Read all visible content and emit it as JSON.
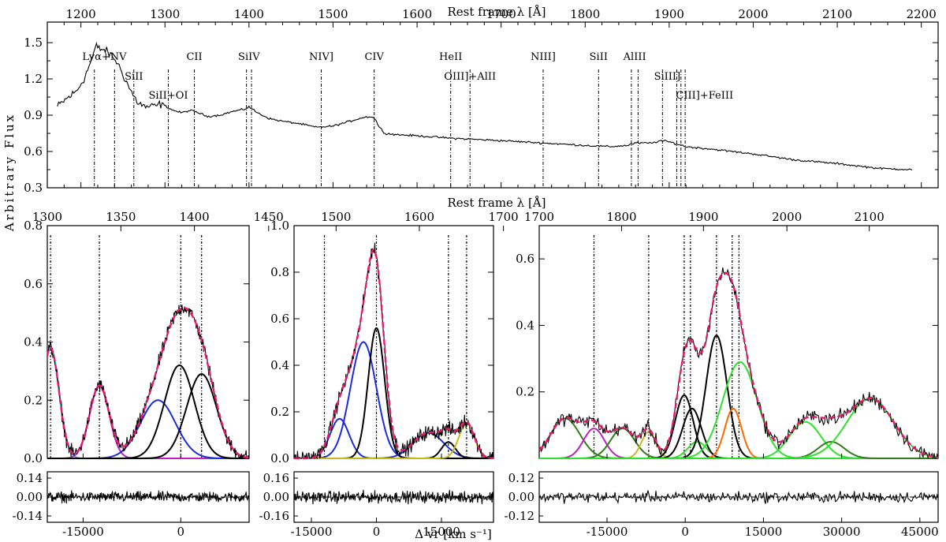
{
  "chart_data": [
    {
      "type": "line",
      "title": "",
      "xlabel": "Rest frame λ [Å]",
      "ylabel": "Arbitrary Flux",
      "xlim": [
        1160,
        2220
      ],
      "ylim": [
        0.3,
        1.67
      ],
      "xticks": [
        "1200",
        "1300",
        "1400",
        "1500",
        "1600",
        "1700",
        "1800",
        "1900",
        "2000",
        "2100",
        "2200"
      ],
      "yticks": [
        "0.3",
        "0.6",
        "0.9",
        "1.2",
        "1.5"
      ],
      "spectrum_knots": {
        "x": [
          1172,
          1180,
          1195,
          1205,
          1212,
          1218,
          1222,
          1228,
          1235,
          1242,
          1250,
          1258,
          1266,
          1275,
          1285,
          1295,
          1302,
          1310,
          1320,
          1330,
          1340,
          1350,
          1365,
          1380,
          1395,
          1400,
          1410,
          1425,
          1440,
          1460,
          1480,
          1500,
          1520,
          1535,
          1545,
          1550,
          1555,
          1562,
          1575,
          1600,
          1640,
          1700,
          1750,
          1800,
          1830,
          1850,
          1860,
          1880,
          1890,
          1900,
          1920,
          1950,
          2000,
          2050,
          2100,
          2150,
          2190
        ],
        "y": [
          0.97,
          1.02,
          1.1,
          1.22,
          1.35,
          1.47,
          1.45,
          1.44,
          1.4,
          1.35,
          1.24,
          1.12,
          1.02,
          0.97,
          0.97,
          0.99,
          0.97,
          0.94,
          0.92,
          0.94,
          0.92,
          0.89,
          0.9,
          0.93,
          0.95,
          0.97,
          0.92,
          0.87,
          0.85,
          0.83,
          0.8,
          0.81,
          0.85,
          0.88,
          0.89,
          0.87,
          0.8,
          0.75,
          0.74,
          0.73,
          0.71,
          0.69,
          0.67,
          0.65,
          0.64,
          0.65,
          0.67,
          0.67,
          0.69,
          0.68,
          0.64,
          0.62,
          0.58,
          0.53,
          0.5,
          0.46,
          0.45
        ]
      },
      "emission_lines": [
        {
          "label": "Lyα+NV",
          "x": [
            1216,
            1240
          ]
        },
        {
          "label": "SiII",
          "x": [
            1263
          ]
        },
        {
          "label": "SiII+OI",
          "x": [
            1304
          ]
        },
        {
          "label": "CII",
          "x": [
            1335
          ]
        },
        {
          "label": "SiIV",
          "x": [
            1397,
            1403
          ]
        },
        {
          "label": "NIV]",
          "x": [
            1486
          ]
        },
        {
          "label": "CIV",
          "x": [
            1549
          ]
        },
        {
          "label": "HeII",
          "x": [
            1640
          ]
        },
        {
          "label": "OIII]+AlII",
          "x": [
            1663
          ]
        },
        {
          "label": "NIII]",
          "x": [
            1750
          ]
        },
        {
          "label": "SiII",
          "x": [
            1816
          ]
        },
        {
          "label": "AlIII",
          "x": [
            1855,
            1863
          ]
        },
        {
          "label": "SiIII]",
          "x": [
            1892
          ]
        },
        {
          "label": "CIII]+FeIII",
          "x": [
            1909,
            1914,
            1919
          ]
        }
      ]
    },
    {
      "type": "line",
      "xlabel": "Δ vr [km s⁻¹]",
      "top_xlabel": "Rest frame λ [Å]",
      "ylim": [
        0,
        0.8
      ],
      "vlim": [
        -20500,
        10500
      ],
      "top_xticks": [
        "1300",
        "1350",
        "1400",
        "1450"
      ],
      "yticks": [
        "0.0",
        "0.2",
        "0.4",
        "0.6",
        "0.8"
      ],
      "xticks": [
        "-15000",
        "0"
      ],
      "residual_yticks": [
        "0.14",
        "0.00",
        "-0.14"
      ],
      "line_markers_v": [
        -20000,
        -12500,
        0,
        3200
      ],
      "components": [
        {
          "name": "cyan",
          "color": "#20b2c0",
          "amp": 0.38,
          "v0": -20000,
          "sigma": 1300
        },
        {
          "name": "magenta",
          "color": "#c020c0",
          "amp": 0.25,
          "v0": -12500,
          "sigma": 1500
        },
        {
          "name": "blue",
          "color": "#1a2be0",
          "amp": 0.2,
          "v0": -3500,
          "sigma": 2700
        },
        {
          "name": "black-1",
          "color": "#000000",
          "amp": 0.32,
          "v0": -200,
          "sigma": 2300
        },
        {
          "name": "black-2",
          "color": "#000000",
          "amp": 0.29,
          "v0": 3200,
          "sigma": 2300
        }
      ]
    },
    {
      "type": "line",
      "xlabel": "Δ vr [km s⁻¹]",
      "top_xlabel": "Rest frame λ [Å]",
      "ylim": [
        0,
        1.0
      ],
      "vlim": [
        -19000,
        27000
      ],
      "top_xticks": [
        "1500",
        "1600",
        "1700"
      ],
      "yticks": [
        "0.0",
        "0.2",
        "0.4",
        "0.6",
        "0.8",
        "1.0"
      ],
      "xticks": [
        "-15000",
        "0",
        "15000"
      ],
      "residual_yticks": [
        "0.16",
        "0.00",
        "-0.16"
      ],
      "line_markers_v": [
        -12000,
        0,
        16600,
        20800
      ],
      "components": [
        {
          "name": "blue-broad",
          "color": "#1a2be0",
          "amp": 0.5,
          "v0": -3000,
          "sigma": 3000
        },
        {
          "name": "blue-wing",
          "color": "#1a2be0",
          "amp": 0.17,
          "v0": -8500,
          "sigma": 2200
        },
        {
          "name": "black-core",
          "color": "#000000",
          "amp": 0.56,
          "v0": 0,
          "sigma": 1900
        },
        {
          "name": "blue-red",
          "color": "#1a2be0",
          "amp": 0.11,
          "v0": 12000,
          "sigma": 3500
        },
        {
          "name": "black-heii",
          "color": "#000000",
          "amp": 0.07,
          "v0": 16600,
          "sigma": 1600
        },
        {
          "name": "olive",
          "color": "#c8b820",
          "amp": 0.15,
          "v0": 20800,
          "sigma": 1800
        }
      ]
    },
    {
      "type": "line",
      "xlabel": "Δ vr [km s⁻¹]",
      "top_xlabel": "Rest frame λ [Å]",
      "ylim": [
        0,
        0.7
      ],
      "vlim": [
        -28000,
        48500
      ],
      "top_xticks": [
        "1700",
        "1800",
        "1900",
        "2000",
        "2100"
      ],
      "yticks": [
        "0.2",
        "0.4",
        "0.6"
      ],
      "xticks": [
        "-15000",
        "0",
        "15000",
        "30000",
        "45000"
      ],
      "residual_yticks": [
        "0.12",
        "0.00",
        "-0.12"
      ],
      "line_markers_v": [
        -17500,
        -7000,
        -200,
        1000,
        6000,
        9000,
        10300
      ],
      "components": [
        {
          "name": "darkgreen-1",
          "color": "#2e7d1a",
          "amp": 0.12,
          "v0": -23000,
          "sigma": 2800
        },
        {
          "name": "magenta",
          "color": "#c020c0",
          "amp": 0.09,
          "v0": -17500,
          "sigma": 2000
        },
        {
          "name": "darkgreen-2",
          "color": "#2e7d1a",
          "amp": 0.09,
          "v0": -12000,
          "sigma": 2300
        },
        {
          "name": "olive",
          "color": "#c8b820",
          "amp": 0.08,
          "v0": -7000,
          "sigma": 1400
        },
        {
          "name": "green-1",
          "color": "#30e030",
          "amp": 0.05,
          "v0": 2300,
          "sigma": 1800
        },
        {
          "name": "black-1",
          "color": "#000000",
          "amp": 0.19,
          "v0": -200,
          "sigma": 1700
        },
        {
          "name": "black-2",
          "color": "#000000",
          "amp": 0.15,
          "v0": 1300,
          "sigma": 1800
        },
        {
          "name": "black-3",
          "color": "#000000",
          "amp": 0.37,
          "v0": 6000,
          "sigma": 2000
        },
        {
          "name": "orange",
          "color": "#ff6a00",
          "amp": 0.15,
          "v0": 9200,
          "sigma": 1600
        },
        {
          "name": "green-main",
          "color": "#30e030",
          "amp": 0.29,
          "v0": 10500,
          "sigma": 3300
        },
        {
          "name": "green-2",
          "color": "#30e030",
          "amp": 0.11,
          "v0": 23000,
          "sigma": 3000
        },
        {
          "name": "darkgreen-3",
          "color": "#2e7d1a",
          "amp": 0.05,
          "v0": 28000,
          "sigma": 2500
        },
        {
          "name": "green-3",
          "color": "#30e030",
          "amp": 0.18,
          "v0": 35500,
          "sigma": 4500
        }
      ]
    }
  ],
  "colors": {
    "model_fit": "#e8186c",
    "data": "#000000",
    "marker": "#000000"
  }
}
